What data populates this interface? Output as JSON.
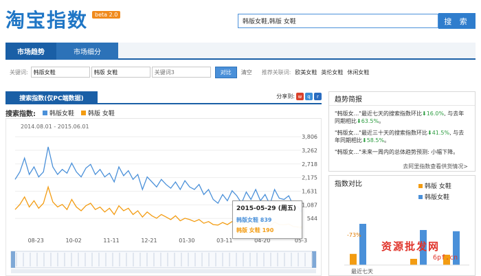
{
  "header": {
    "logo": "淘宝指数",
    "beta": "beta 2.0",
    "search_value": "韩版女鞋,韩版 女鞋",
    "search_button": "搜 索"
  },
  "tabs": [
    {
      "label": "市场趋势"
    },
    {
      "label": "市场细分"
    }
  ],
  "keywords": {
    "label": "关键词:",
    "kw1": "韩版女鞋",
    "kw2": "韩版 女鞋",
    "kw3_placeholder": "关键词3",
    "compare": "对比",
    "clear": "清空",
    "rec_label": "推荐关联词:",
    "rec": [
      "欧美女鞋",
      "英伦女鞋",
      "休闲女鞋"
    ]
  },
  "left_panel": {
    "title": "搜索指数(仅PC端数据)",
    "share": "分享到:",
    "legend_title": "搜索指数:",
    "date_range": "2014.08.01 - 2015.06.01",
    "tooltip": {
      "date": "2015-05-29 (周五)",
      "s1_label": "韩版女鞋",
      "s1_value": "839",
      "s2_label": "韩版 女鞋",
      "s2_value": "190"
    }
  },
  "colors": {
    "blue": "#4a90d9",
    "orange": "#f39c12",
    "brand": "#1a5fa6"
  },
  "chart_data": {
    "type": "line",
    "x_tick_labels": [
      "08-23",
      "10-02",
      "11-11",
      "12-21",
      "01-30",
      "03-11",
      "04-20",
      "05-3"
    ],
    "y_tick_labels": [
      "3,806",
      "3,262",
      "2,718",
      "2,175",
      "1,631",
      "1,087",
      "544"
    ],
    "ylim": [
      0,
      4000
    ],
    "yticks": [
      3806,
      3262,
      2718,
      2175,
      1631,
      1087,
      544
    ],
    "x_range_days": [
      0,
      303
    ],
    "x_tick_days": [
      22,
      62,
      102,
      142,
      182,
      222,
      262,
      303
    ],
    "series": [
      {
        "name": "韩版女鞋",
        "color": "#4a90d9",
        "x": [
          0,
          5,
          10,
          15,
          20,
          25,
          30,
          35,
          40,
          45,
          50,
          55,
          60,
          65,
          70,
          75,
          80,
          85,
          90,
          95,
          100,
          105,
          110,
          115,
          120,
          125,
          130,
          135,
          140,
          145,
          150,
          155,
          160,
          165,
          170,
          175,
          180,
          185,
          190,
          195,
          200,
          205,
          210,
          215,
          220,
          225,
          230,
          235,
          240,
          245,
          250,
          255,
          260,
          265,
          270,
          275,
          280,
          285,
          290,
          295,
          300,
          303
        ],
        "values": [
          2100,
          2400,
          2950,
          2300,
          2600,
          2200,
          2400,
          3400,
          2600,
          2300,
          2500,
          2350,
          2750,
          2400,
          2200,
          2550,
          2700,
          2300,
          2500,
          2200,
          2350,
          2000,
          2600,
          2250,
          2450,
          2100,
          2300,
          1700,
          2200,
          2000,
          1800,
          2100,
          1900,
          1750,
          2000,
          1700,
          2050,
          1800,
          1700,
          1900,
          1500,
          1700,
          1300,
          1150,
          1500,
          1250,
          1650,
          1450,
          1150,
          1600,
          1300,
          1700,
          1250,
          1500,
          1100,
          1700,
          1350,
          1300,
          1450,
          1050,
          1000,
          839
        ]
      },
      {
        "name": "韩版 女鞋",
        "color": "#f39c12",
        "x": [
          0,
          5,
          10,
          15,
          20,
          25,
          30,
          35,
          40,
          45,
          50,
          55,
          60,
          65,
          70,
          75,
          80,
          85,
          90,
          95,
          100,
          105,
          110,
          115,
          120,
          125,
          130,
          135,
          140,
          145,
          150,
          155,
          160,
          165,
          170,
          175,
          180,
          185,
          190,
          195,
          200,
          205,
          210,
          215,
          220,
          225,
          230,
          235,
          240,
          245,
          250,
          255,
          260,
          265,
          270,
          275,
          280,
          285,
          290,
          295,
          300,
          303
        ],
        "values": [
          900,
          1100,
          1400,
          1000,
          1250,
          950,
          1150,
          1800,
          1200,
          1000,
          1100,
          900,
          1300,
          1000,
          850,
          1050,
          1150,
          900,
          1000,
          800,
          950,
          700,
          1050,
          850,
          950,
          700,
          850,
          600,
          800,
          650,
          550,
          700,
          600,
          500,
          650,
          450,
          550,
          500,
          420,
          500,
          350,
          420,
          300,
          280,
          380,
          300,
          420,
          350,
          280,
          420,
          300,
          430,
          280,
          380,
          250,
          400,
          300,
          290,
          320,
          220,
          200,
          190
        ]
      }
    ]
  },
  "right_panel": {
    "brief_title": "趋势简报",
    "brief": [
      {
        "pre": "\"韩版女...\"最近七天的搜索指数环比",
        "a": "16.0%",
        "mid": ", 与去年同期相比",
        "b": "63.5%",
        "post": "。"
      },
      {
        "pre": "\"韩版女...\"最近三十天的搜索指数环比",
        "a": "41.5%",
        "mid": ", 与去年同期相比",
        "b": "58.5%",
        "post": "。"
      },
      {
        "pre": "\"韩版女...\"未来一周内的总体趋势预测: 小幅下降。",
        "a": "",
        "mid": "",
        "b": "",
        "post": ""
      }
    ],
    "brief_link": "去阿里指数查看供货情况>",
    "idx_title": "指数对比",
    "idx_legend": [
      "韩版 女鞋",
      "韩版女鞋"
    ],
    "idx_pct": "-73%",
    "idx_xlabel": "最近七天",
    "mini_chart": {
      "groups": [
        {
          "label": "最近七天",
          "orange": 0.27,
          "blue": 1.0
        },
        {
          "label": "",
          "orange": 0.15,
          "blue": 0.85
        },
        {
          "label": "",
          "orange": 0.25,
          "blue": 0.82
        }
      ]
    }
  },
  "watermark": {
    "line1": "资源批发网",
    "line2": "6pf.cn"
  }
}
